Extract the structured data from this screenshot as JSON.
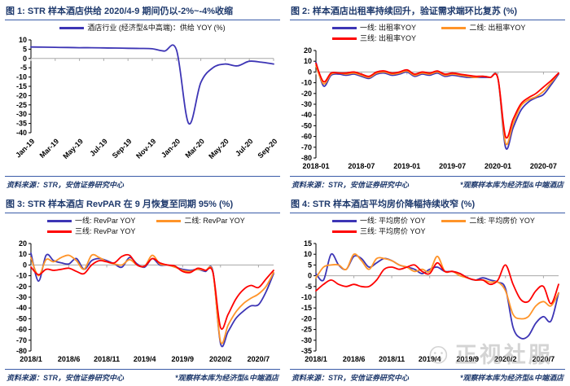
{
  "colors": {
    "title": "#1f3a6d",
    "rule": "#3a5ca8",
    "tier1": "#3d35b5",
    "tier2": "#ff9429",
    "tier3": "#fe0000",
    "axis": "#000000",
    "zeroline": "#a8a8a8",
    "watermark": "#ababab"
  },
  "watermark": {
    "icon": "smiley-face-icon",
    "icon_glyph": "☺",
    "text": "正视社服"
  },
  "chart_data": [
    {
      "type": "line",
      "title": "图 1: STR 样本酒店供给 2020/4-9 期间仍以-2%~-4%收缩",
      "legend": [
        {
          "label": "酒店行业 (经济型&中高端)：供给 YOY (%)",
          "color_key": "tier1"
        }
      ],
      "source": "资料来源：STR，安信证券研究中心",
      "footnote": "",
      "xlabel": "",
      "ylabel": "",
      "categories": [
        "Jan-19",
        "Mar-19",
        "May-19",
        "Jul-19",
        "Sep-19",
        "Nov-19",
        "Jan-20",
        "Mar-20",
        "May-20",
        "Jul-20",
        "Sep-20"
      ],
      "tick_indices": [
        0,
        2,
        4,
        6,
        8,
        10,
        12,
        14,
        16,
        18,
        20
      ],
      "x_rotate": true,
      "ylim": [
        -40,
        10
      ],
      "yticks": [
        10,
        5,
        0,
        -5,
        -10,
        -15,
        -20,
        -25,
        -30,
        -35,
        -40
      ],
      "series": [
        {
          "name": "酒店行业 (经济型&中高端)：供给 YOY",
          "color_key": "tier1",
          "values": [
            6.2,
            6.1,
            6.0,
            5.9,
            5.8,
            5.8,
            5.7,
            5.6,
            5.5,
            5.4,
            5.2,
            4.0,
            4.5,
            -35,
            -13,
            -5,
            -3,
            -4,
            -1.5,
            -2,
            -3
          ]
        }
      ]
    },
    {
      "type": "line",
      "title": "图 2: 样本酒店出租率持续回升，验证需求端环比复苏 (%)",
      "legend": [
        {
          "label": "一线: 出租率YOY",
          "color_key": "tier1"
        },
        {
          "label": "二线: 出租率YOY",
          "color_key": "tier2"
        },
        {
          "label": "三线: 出租率YOY",
          "color_key": "tier3"
        }
      ],
      "source": "资料来源：STR，安信证券研究中心",
      "footnote": "*观察样本库为经济型&中端酒店",
      "xlabel": "",
      "ylabel": "",
      "categories": [
        "2018-01",
        "2018-07",
        "2019-01",
        "2019-07",
        "2020-01",
        "2020-07"
      ],
      "tick_indices": [
        0,
        6,
        12,
        18,
        24,
        30
      ],
      "x_rotate": false,
      "ylim": [
        -80,
        20
      ],
      "yticks": [
        20,
        10,
        0,
        -10,
        -20,
        -30,
        -40,
        -50,
        -60,
        -70,
        -80
      ],
      "series": [
        {
          "name": "一线: 出租率YOY",
          "color_key": "tier1",
          "values": [
            9,
            -13,
            -3,
            -2,
            -3,
            -2,
            -4,
            -6,
            -2,
            -1,
            -3,
            -2,
            0,
            -4,
            -2,
            -3,
            -1,
            -4,
            -3,
            -4,
            -5,
            -5,
            -5,
            -5,
            -6,
            -70,
            -52,
            -36,
            -28,
            -24,
            -21,
            -12,
            -2
          ]
        },
        {
          "name": "二线: 出租率YOY",
          "color_key": "tier2",
          "values": [
            6,
            -11,
            -2,
            -1,
            -2,
            -1,
            -3,
            -5,
            -1,
            0,
            -2,
            -1,
            1,
            -3,
            -1,
            -2,
            0,
            -3,
            -2,
            -3,
            -4,
            -5,
            -4,
            -5,
            -6,
            -66,
            -48,
            -32,
            -26,
            -23,
            -18,
            -10,
            -1
          ]
        },
        {
          "name": "三线: 出租率YOY",
          "color_key": "tier3",
          "values": [
            8,
            -9,
            -1,
            -1,
            -1,
            0,
            -2,
            -4,
            0,
            1,
            -1,
            0,
            2,
            -2,
            0,
            -1,
            1,
            -2,
            -1,
            -2,
            -3,
            -4,
            -4,
            -5,
            -6,
            -60,
            -44,
            -30,
            -24,
            -20,
            -14,
            -8,
            -1
          ]
        }
      ]
    },
    {
      "type": "line",
      "title": "图 3: STR 样本酒店 RevPAR 在 9 月恢复至同期 95% (%)",
      "legend": [
        {
          "label": "一线: RevPar YOY",
          "color_key": "tier1"
        },
        {
          "label": "二线: RevPar YOY",
          "color_key": "tier2"
        },
        {
          "label": "三线: RevPar YOY",
          "color_key": "tier3"
        }
      ],
      "source": "资料来源：STR，安信证券研究中心",
      "footnote": "*观察样本库为经济型&中端酒店",
      "xlabel": "",
      "ylabel": "",
      "categories": [
        "2018/1",
        "2018/6",
        "2018/11",
        "2019/4",
        "2019/9",
        "2020/2",
        "2020/7"
      ],
      "tick_indices": [
        0,
        5,
        10,
        15,
        20,
        25,
        30
      ],
      "x_rotate": false,
      "ylim": [
        -80,
        20
      ],
      "yticks": [
        20,
        10,
        0,
        -10,
        -20,
        -30,
        -40,
        -50,
        -60,
        -70,
        -80
      ],
      "series": [
        {
          "name": "一线: RevPar YOY",
          "color_key": "tier1",
          "values": [
            11,
            -15,
            9,
            4,
            2,
            1,
            6,
            -4,
            4,
            6,
            4,
            1,
            -2,
            7,
            1,
            -2,
            6,
            0,
            0,
            -2,
            -4,
            -5,
            -4,
            -6,
            -6,
            -73,
            -62,
            -50,
            -43,
            -38,
            -37,
            -25,
            -8
          ]
        },
        {
          "name": "二线: RevPar YOY",
          "color_key": "tier2",
          "values": [
            7,
            -10,
            5,
            3,
            7,
            9,
            4,
            -4,
            9,
            7,
            3,
            1,
            0,
            5,
            0,
            -1,
            9,
            1,
            0,
            -2,
            -5,
            -6,
            -4,
            -5,
            -7,
            -71,
            -56,
            -44,
            -36,
            -31,
            -27,
            -20,
            -7
          ]
        },
        {
          "name": "三线: RevPar YOY",
          "color_key": "tier3",
          "values": [
            -2,
            -9,
            -4,
            -5,
            -4,
            -3,
            -6,
            -8,
            0,
            4,
            3,
            2,
            8,
            9,
            0,
            -1,
            6,
            2,
            0,
            -1,
            -6,
            -7,
            -3,
            -5,
            -7,
            -58,
            -46,
            -32,
            -23,
            -19,
            -21,
            -13,
            -5
          ]
        }
      ]
    },
    {
      "type": "line",
      "title": "图 4: STR 样本酒店平均房价降幅持续收窄 (%)",
      "legend": [
        {
          "label": "一线: 平均房价 YOY",
          "color_key": "tier1"
        },
        {
          "label": "二线: 平均房价 YOY",
          "color_key": "tier2"
        },
        {
          "label": "三线: 平均房价 YOY",
          "color_key": "tier3"
        }
      ],
      "source": "资料来源：STR，安信证券研究中心",
      "footnote": "*观察样本库为经济型&中端酒店",
      "xlabel": "",
      "ylabel": "",
      "categories": [
        "2018/1",
        "2018/6",
        "2018/11",
        "2019/4",
        "2019/9",
        "2020/2",
        "2020/7"
      ],
      "tick_indices": [
        0,
        5,
        10,
        15,
        20,
        25,
        30
      ],
      "x_rotate": false,
      "ylim": [
        -35,
        15
      ],
      "yticks": [
        15,
        10,
        5,
        0,
        -5,
        -10,
        -15,
        -20,
        -25,
        -30,
        -35
      ],
      "series": [
        {
          "name": "一线: 平均房价 YOY",
          "color_key": "tier1",
          "values": [
            1,
            -2,
            10,
            5,
            3,
            9,
            8,
            4,
            6,
            8,
            7,
            5,
            4,
            3,
            1,
            3,
            4,
            2,
            2,
            1,
            -1,
            -2,
            -1,
            -2,
            -3,
            -6,
            -24,
            -29,
            -28,
            -22,
            -19,
            -21,
            -8
          ]
        },
        {
          "name": "二线: 平均房价 YOY",
          "color_key": "tier2",
          "values": [
            -1,
            4,
            5,
            5,
            3,
            10,
            7,
            3,
            8,
            8,
            7,
            5,
            4,
            2,
            3,
            2,
            9,
            2,
            2,
            0,
            -1,
            -2,
            -2,
            -3,
            -3,
            -7,
            -18,
            -20,
            -19,
            -14,
            -12,
            -14,
            -8
          ]
        },
        {
          "name": "三线: 平均房价 YOY",
          "color_key": "tier3",
          "values": [
            -7,
            -4,
            -2,
            -4,
            -5,
            -4,
            -5,
            -5,
            -2,
            3,
            4,
            3,
            4,
            5,
            2,
            1,
            6,
            2,
            2,
            1,
            -1,
            -2,
            -2,
            -4,
            -2,
            5,
            -4,
            -11,
            -12,
            -7,
            -5,
            -13,
            -4
          ]
        }
      ]
    }
  ]
}
